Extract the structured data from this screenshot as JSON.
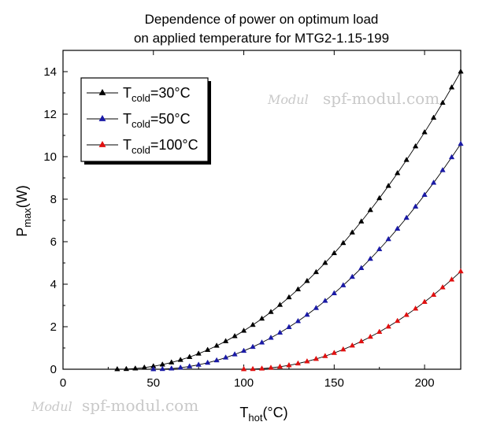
{
  "chart_data": {
    "type": "line",
    "title_lines": [
      "Dependence of power on optimum load",
      "on applied temperature for MTG2-1.15-199"
    ],
    "xlabel": {
      "main": "T",
      "sub": "hot",
      "suffix": "(°C)"
    },
    "ylabel": {
      "main": "P",
      "sub": "max",
      "suffix": "(W)"
    },
    "xlim": [
      0,
      220
    ],
    "ylim": [
      0,
      15
    ],
    "xticks": [
      0,
      50,
      100,
      150,
      200
    ],
    "yticks": [
      0,
      2,
      4,
      6,
      8,
      10,
      12,
      14
    ],
    "legend_position": "top-left",
    "grid": false,
    "series": [
      {
        "name": "Tcold=30°C",
        "legend": {
          "main": "T",
          "sub": "cold",
          "suffix": "=30°C"
        },
        "color": "#000000",
        "t_cold": 30,
        "x_start": 30,
        "x_end": 220,
        "x_step": 5,
        "y_end": 14.0
      },
      {
        "name": "Tcold=50°C",
        "legend": {
          "main": "T",
          "sub": "cold",
          "suffix": "=50°C"
        },
        "color": "#1a1aa6",
        "t_cold": 50,
        "x_start": 50,
        "x_end": 220,
        "x_step": 5,
        "y_end": 10.6
      },
      {
        "name": "Tcold=100°C",
        "legend": {
          "main": "T",
          "sub": "cold",
          "suffix": "=100°C"
        },
        "color": "#e01010",
        "t_cold": 100,
        "x_start": 100,
        "x_end": 220,
        "x_step": 5,
        "y_end": 4.6
      }
    ]
  },
  "watermark": {
    "logo": "Modul",
    "text": "spf-modul.com"
  }
}
